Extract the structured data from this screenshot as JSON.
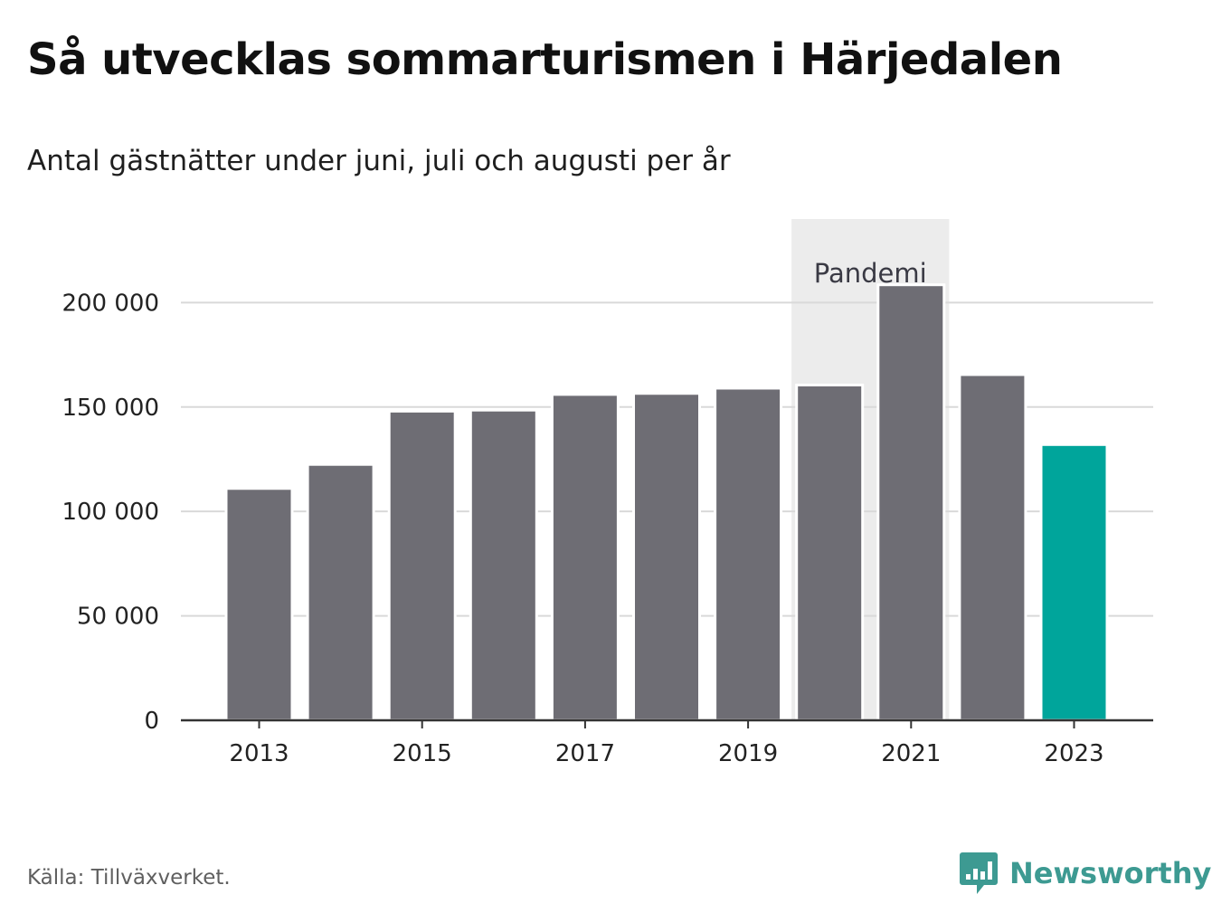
{
  "title": "Så utvecklas sommarturismen i Härjedalen",
  "subtitle": "Antal gästnätter under juni, juli och augusti per år",
  "source": "Källa: Tillväxverket.",
  "brand": {
    "name": "Newsworthy",
    "icon": "newsworthy-logo-icon",
    "color": "#3d9a92"
  },
  "colors": {
    "bar": "#6e6d74",
    "highlight": "#00a59b",
    "band": "#ececec"
  },
  "chart_data": {
    "type": "bar",
    "title": "Så utvecklas sommarturismen i Härjedalen",
    "subtitle": "Antal gästnätter under juni, juli och augusti per år",
    "categories": [
      2013,
      2014,
      2015,
      2016,
      2017,
      2018,
      2019,
      2020,
      2021,
      2022,
      2023
    ],
    "values": [
      111000,
      122500,
      148000,
      148500,
      156000,
      156500,
      159000,
      160500,
      208500,
      165500,
      132000
    ],
    "highlight_category": 2023,
    "xlabel": "",
    "ylabel": "",
    "ylim": [
      0,
      240000
    ],
    "y_ticks": [
      0,
      50000,
      100000,
      150000,
      200000
    ],
    "y_tick_labels": [
      "0",
      "50 000",
      "100 000",
      "150 000",
      "200 000"
    ],
    "x_tick_labels": [
      "2013",
      "2015",
      "2017",
      "2019",
      "2021",
      "2023"
    ],
    "grid": true,
    "legend": "none",
    "annotation": {
      "label": "Pandemi",
      "from": 2020,
      "to": 2021
    }
  }
}
